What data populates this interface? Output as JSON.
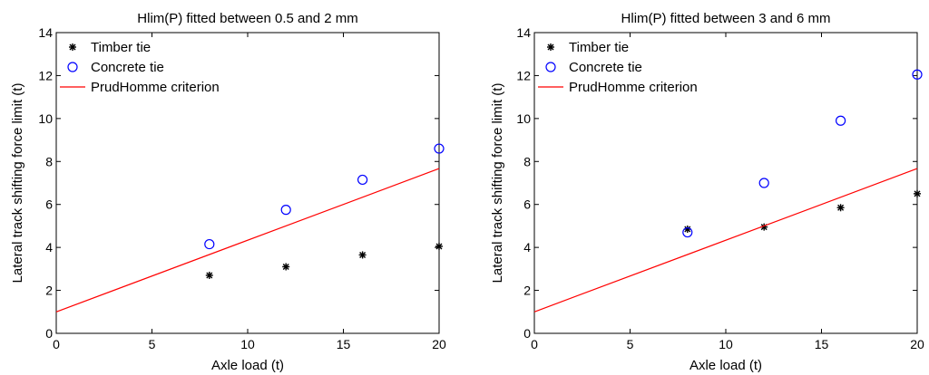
{
  "chart_data": [
    {
      "type": "scatter",
      "title": "Hlim(P) fitted between 0.5 and 2 mm",
      "xlabel": "Axle load (t)",
      "ylabel": "Lateral track shifting force limit (t)",
      "xlim": [
        0,
        20
      ],
      "ylim": [
        0,
        14
      ],
      "xticks": [
        0,
        5,
        10,
        15,
        20
      ],
      "yticks": [
        0,
        2,
        4,
        6,
        8,
        10,
        12,
        14
      ],
      "grid": false,
      "legend_position": "top-left",
      "series": [
        {
          "name": "Timber tie",
          "kind": "scatter",
          "marker": "asterisk",
          "color": "#000000",
          "points": [
            [
              8,
              2.7
            ],
            [
              12,
              3.1
            ],
            [
              16,
              3.65
            ],
            [
              20,
              4.05
            ]
          ]
        },
        {
          "name": "Concrete tie",
          "kind": "scatter",
          "marker": "circle",
          "color": "#0000ff",
          "points": [
            [
              8,
              4.15
            ],
            [
              12,
              5.75
            ],
            [
              16,
              7.15
            ],
            [
              20,
              8.6
            ]
          ]
        },
        {
          "name": "PrudHomme criterion",
          "kind": "line",
          "color": "#ff0000",
          "points": [
            [
              0,
              1.0
            ],
            [
              20,
              7.67
            ]
          ]
        }
      ]
    },
    {
      "type": "scatter",
      "title": "Hlim(P) fitted between 3 and 6 mm",
      "xlabel": "Axle load (t)",
      "ylabel": "Lateral track shifting force limit (t)",
      "xlim": [
        0,
        20
      ],
      "ylim": [
        0,
        14
      ],
      "xticks": [
        0,
        5,
        10,
        15,
        20
      ],
      "yticks": [
        0,
        2,
        4,
        6,
        8,
        10,
        12,
        14
      ],
      "grid": false,
      "legend_position": "top-left",
      "series": [
        {
          "name": "Timber tie",
          "kind": "scatter",
          "marker": "asterisk",
          "color": "#000000",
          "points": [
            [
              8,
              4.85
            ],
            [
              12,
              4.95
            ],
            [
              16,
              5.85
            ],
            [
              20,
              6.5
            ]
          ]
        },
        {
          "name": "Concrete tie",
          "kind": "scatter",
          "marker": "circle",
          "color": "#0000ff",
          "points": [
            [
              8,
              4.7
            ],
            [
              12,
              7.0
            ],
            [
              16,
              9.9
            ],
            [
              20,
              12.05
            ]
          ]
        },
        {
          "name": "PrudHomme criterion",
          "kind": "line",
          "color": "#ff0000",
          "points": [
            [
              0,
              1.0
            ],
            [
              20,
              7.67
            ]
          ]
        }
      ]
    }
  ]
}
